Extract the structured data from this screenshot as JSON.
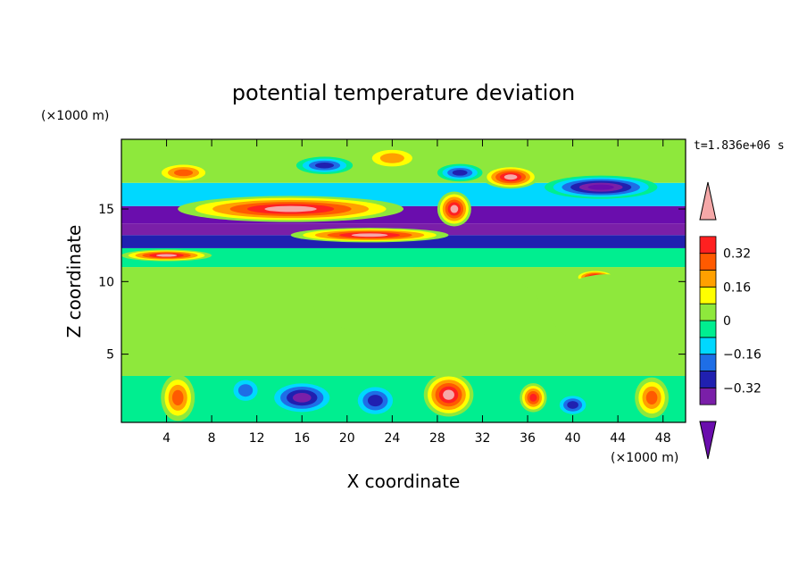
{
  "chart_data": {
    "type": "heatmap",
    "title": "potential temperature deviation",
    "xlabel": "X coordinate",
    "ylabel": "Z coordinate",
    "x_unit": "(×1000 m)",
    "y_unit": "(×1000 m)",
    "time_label": "t=1.836e+06 s",
    "xlim": [
      0,
      50
    ],
    "ylim": [
      0.3,
      19.8
    ],
    "x_ticks": [
      4,
      8,
      12,
      16,
      20,
      24,
      28,
      32,
      36,
      40,
      44,
      48
    ],
    "y_ticks": [
      5,
      10,
      15
    ],
    "colorbar": {
      "levels": [
        -0.48,
        -0.4,
        -0.32,
        -0.24,
        -0.16,
        -0.08,
        0,
        0.08,
        0.16,
        0.24,
        0.32,
        0.4,
        0.48
      ],
      "tick_labels": [
        "0.32",
        "0.16",
        "0",
        "−0.16",
        "−0.32"
      ],
      "tick_values": [
        0.32,
        0.16,
        0,
        -0.16,
        -0.32
      ],
      "colors": [
        "#6a0dad",
        "#7a1fa8",
        "#2020b0",
        "#1e6ee6",
        "#00d8ff",
        "#00ee90",
        "#8ee83c",
        "#ffff00",
        "#ffa000",
        "#ff5a00",
        "#ff2020",
        "#f5a8a8"
      ],
      "extend": "both"
    },
    "bands": [
      {
        "z": [
          0.3,
          3.5
        ],
        "value": -0.05
      },
      {
        "z": [
          3.5,
          11.0
        ],
        "value": 0.03
      },
      {
        "z": [
          11.0,
          12.3
        ],
        "value": -0.08
      },
      {
        "z": [
          12.3,
          13.2
        ],
        "value": -0.28
      },
      {
        "z": [
          13.2,
          14.0
        ],
        "value": -0.4
      },
      {
        "z": [
          14.0,
          15.2
        ],
        "value": -0.44
      },
      {
        "z": [
          15.2,
          16.8
        ],
        "value": -0.1
      },
      {
        "z": [
          16.8,
          19.8
        ],
        "value": 0.05
      }
    ],
    "features": [
      {
        "x": 15,
        "z": 15.0,
        "rx": 10,
        "rz": 0.9,
        "value": 0.5
      },
      {
        "x": 22,
        "z": 13.2,
        "rx": 7,
        "rz": 0.5,
        "value": 0.5
      },
      {
        "x": 29.5,
        "z": 15.0,
        "rx": 1.5,
        "rz": 1.2,
        "value": 0.5
      },
      {
        "x": 34.5,
        "z": 17.2,
        "rx": 2.5,
        "rz": 0.8,
        "value": 0.44
      },
      {
        "x": 5.5,
        "z": 17.5,
        "rx": 2.5,
        "rz": 0.7,
        "value": 0.3
      },
      {
        "x": 24,
        "z": 18.5,
        "rx": 2.5,
        "rz": 0.8,
        "value": 0.2
      },
      {
        "x": 18,
        "z": 18.0,
        "rx": 2.5,
        "rz": 0.6,
        "value": -0.3
      },
      {
        "x": 42.5,
        "z": 16.5,
        "rx": 5,
        "rz": 0.8,
        "value": -0.44
      },
      {
        "x": 30,
        "z": 17.5,
        "rx": 2,
        "rz": 0.6,
        "value": -0.35
      },
      {
        "x": 4,
        "z": 11.8,
        "rx": 4,
        "rz": 0.4,
        "value": 0.48
      },
      {
        "x": 42,
        "z": 10.3,
        "rx": 1.8,
        "rz": 0.5,
        "value": 0.48
      },
      {
        "x": 27,
        "z": 8.5,
        "rx": 10,
        "rz": 2.5,
        "value": 0.08
      },
      {
        "x": 43,
        "z": 8.0,
        "rx": 5,
        "rz": 2.5,
        "value": 0.08
      },
      {
        "x": 5,
        "z": 2.0,
        "rx": 1.5,
        "rz": 1.6,
        "value": 0.35
      },
      {
        "x": 29,
        "z": 2.2,
        "rx": 2.2,
        "rz": 1.5,
        "value": 0.5
      },
      {
        "x": 16,
        "z": 2.0,
        "rx": 3,
        "rz": 1.2,
        "value": -0.4
      },
      {
        "x": 22.5,
        "z": 1.8,
        "rx": 2,
        "rz": 1.2,
        "value": -0.3
      },
      {
        "x": 36.5,
        "z": 2.0,
        "rx": 1.2,
        "rz": 1.0,
        "value": 0.36
      },
      {
        "x": 47,
        "z": 2.0,
        "rx": 1.5,
        "rz": 1.4,
        "value": 0.3
      },
      {
        "x": 40,
        "z": 1.5,
        "rx": 1.5,
        "rz": 0.8,
        "value": -0.3
      },
      {
        "x": 11,
        "z": 2.5,
        "rx": 1.5,
        "rz": 1.0,
        "value": -0.2
      }
    ]
  }
}
